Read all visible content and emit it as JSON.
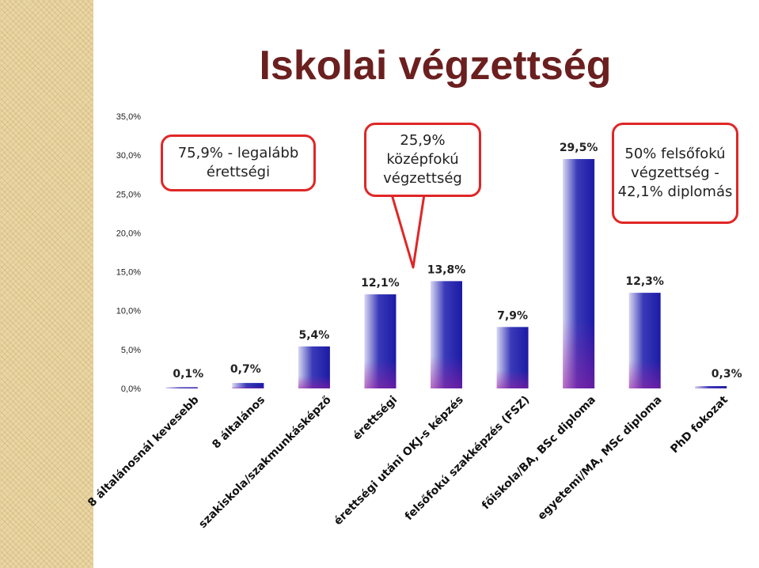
{
  "title": "Iskolai végzettség",
  "callouts": [
    "75,9% - legalább érettségi",
    "25,9% középfokú végzettség",
    "50% felsőfokú végzettség - 42,1% diplomás"
  ],
  "chart_data": {
    "type": "bar",
    "title": "Iskolai végzettség",
    "categories": [
      "8 általánosnál kevesebb",
      "8 általános",
      "szakiskola/szakmunkásképző",
      "érettségi",
      "érettségi utáni OKJ-s képzés",
      "felsőfokú szakképzés (FSZ)",
      "főiskola/BA, BSc diploma",
      "egyetemi/MA, MSc diploma",
      "PhD fokozat"
    ],
    "values": [
      0.1,
      0.7,
      5.4,
      12.1,
      13.8,
      7.9,
      29.5,
      12.3,
      0.3
    ],
    "data_labels": [
      "0,1%",
      "0,7%",
      "5,4%",
      "12,1%",
      "13,8%",
      "7,9%",
      "29,5%",
      "12,3%",
      "0,3%"
    ],
    "y_ticks": [
      "0,0%",
      "5,0%",
      "10,0%",
      "15,0%",
      "20,0%",
      "25,0%",
      "30,0%",
      "35,0%"
    ],
    "ylim": [
      0,
      35
    ],
    "grid": false,
    "legend": false,
    "colors": {
      "bar_dark": "#1a1aa6",
      "bar_light": "#d8d8f4",
      "bar_shade": "#a01ea0",
      "title": "#6b1f1f",
      "callout_border": "#e02626"
    }
  }
}
